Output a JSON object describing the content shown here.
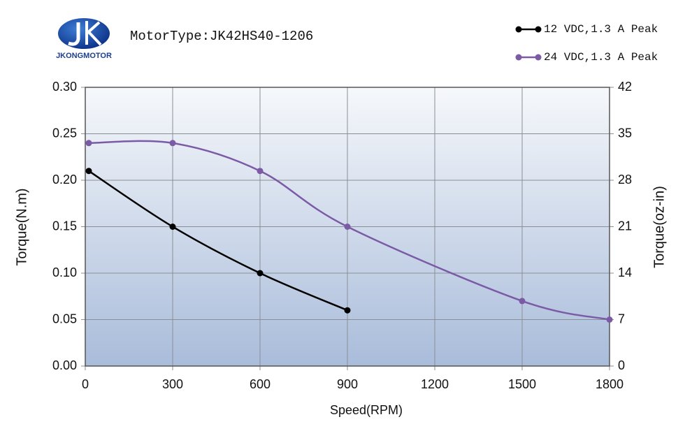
{
  "chart_data": {
    "type": "line",
    "brand": "JKONGMOTOR",
    "title": "MotorType:JK42HS40-1206",
    "x_label": "Speed(RPM)",
    "y_label": "Torque(N.m)",
    "y2_label": "Torque(oz-in)",
    "xlim": [
      0,
      1800
    ],
    "xticks": [
      0,
      300,
      600,
      900,
      1200,
      1500,
      1800
    ],
    "ylim": [
      0,
      0.3
    ],
    "yticks": [
      {
        "value": 0,
        "label": "0.00"
      },
      {
        "value": 0.05,
        "label": "0.05"
      },
      {
        "value": 0.1,
        "label": "0.10"
      },
      {
        "value": 0.15,
        "label": "0.15"
      },
      {
        "value": 0.2,
        "label": "0.20"
      },
      {
        "value": 0.25,
        "label": "0.25"
      },
      {
        "value": 0.3,
        "label": "0.30"
      }
    ],
    "y2lim": [
      0,
      42
    ],
    "y2ticks": [
      0,
      7,
      14,
      21,
      28,
      35,
      42
    ],
    "grid": true,
    "legend": "top-right",
    "series": [
      {
        "name": "12 VDC,1.3 A Peak",
        "color": "#000000",
        "x": [
          12,
          300,
          600,
          900
        ],
        "values": [
          0.21,
          0.15,
          0.1,
          0.06
        ]
      },
      {
        "name": "24 VDC,1.3 A Peak",
        "color": "#7b5aa6",
        "x": [
          12,
          300,
          600,
          900,
          1500,
          1800
        ],
        "values": [
          0.24,
          0.24,
          0.21,
          0.15,
          0.07,
          0.05
        ]
      }
    ]
  }
}
